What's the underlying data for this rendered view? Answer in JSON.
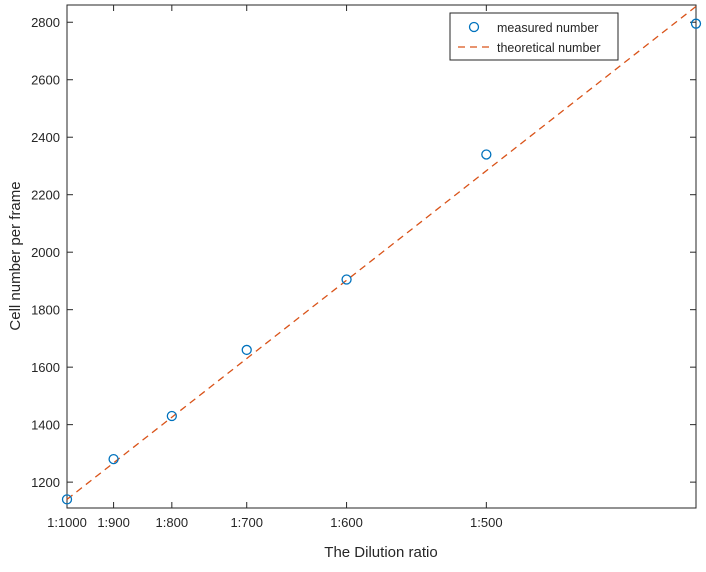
{
  "chart_data": {
    "type": "scatter",
    "title": "",
    "xlabel": "The Dilution ratio",
    "ylabel": "Cell number per frame",
    "x_scale": "reciprocal",
    "x_tick_labels": [
      "1:1000",
      "1:900",
      "1:800",
      "1:700",
      "1:600",
      "1:500"
    ],
    "x_tick_values": [
      0.001,
      0.0011111,
      0.00125,
      0.0014286,
      0.0016667,
      0.002
    ],
    "xlim": [
      0.001,
      0.0025
    ],
    "ylim": [
      1110,
      2860
    ],
    "y_ticks": [
      1200,
      1400,
      1600,
      1800,
      2000,
      2200,
      2400,
      2600,
      2800
    ],
    "grid": false,
    "legend_position": "top-right",
    "series": [
      {
        "name": "measured number",
        "marker": "circle-open",
        "color": "#0072bd",
        "x": [
          0.001,
          0.0011111,
          0.00125,
          0.0014286,
          0.0016667,
          0.002,
          0.0025
        ],
        "y": [
          1140,
          1280,
          1430,
          1660,
          1905,
          2340,
          2795
        ]
      },
      {
        "name": "theoretical number",
        "line": "dashed",
        "color": "#d95319",
        "x": [
          0.001,
          0.0025
        ],
        "y": [
          1140,
          2855
        ]
      }
    ]
  }
}
